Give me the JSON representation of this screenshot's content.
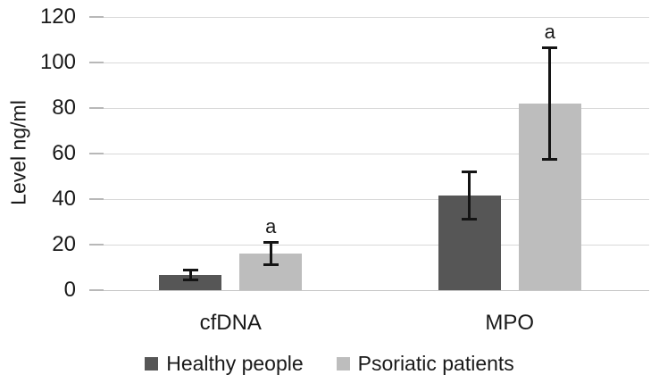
{
  "chart_data": {
    "type": "bar",
    "title": "",
    "ylabel": "Level ng/ml",
    "xlabel": "",
    "ylim": [
      0,
      120
    ],
    "ytick_step": 20,
    "yticks": [
      0,
      20,
      40,
      60,
      80,
      100,
      120
    ],
    "categories": [
      "cfDNA",
      "MPO"
    ],
    "series": [
      {
        "name": "Healthy people",
        "color": "#565656",
        "values": [
          6.7,
          41.5
        ],
        "errors": [
          2.1,
          10.5
        ],
        "annotations": [
          "",
          ""
        ]
      },
      {
        "name": "Psoriatic patients",
        "color": "#bdbdbd",
        "values": [
          16,
          82
        ],
        "errors": [
          5,
          24.5
        ],
        "annotations": [
          "a",
          "a"
        ]
      }
    ],
    "grid": true,
    "legend_position": "bottom",
    "colors": {
      "gridline": "#d9d9d9",
      "axis_line": "#c6c6c6",
      "error_bar": "#141414",
      "text": "#1a1a1a"
    }
  }
}
